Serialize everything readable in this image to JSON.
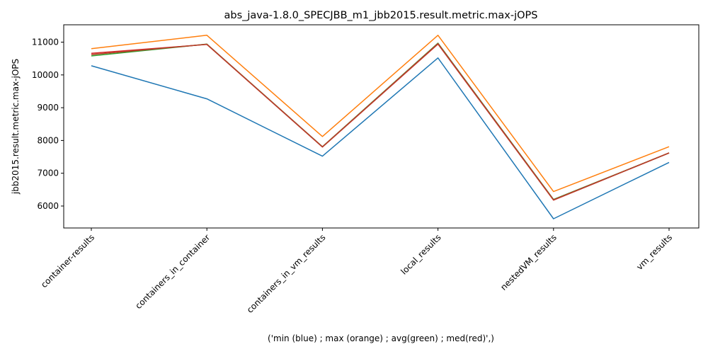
{
  "chart_data": {
    "type": "line",
    "title": "abs_java-1.8.0_SPECJBB_m1_jbb2015.result.metric.max-jOPS",
    "xlabel": "('min (blue) ; max (orange) ; avg(green) ; med(red)',)",
    "ylabel": "jbb2015.result.metric.max-jOPS",
    "categories": [
      "container-results",
      "containers_in_container",
      "containers_in_vm_results",
      "local_results",
      "nestedVM_results",
      "vm_results"
    ],
    "ylim": [
      5330,
      11530
    ],
    "yticks": [
      6000,
      7000,
      8000,
      9000,
      10000,
      11000
    ],
    "grid": false,
    "series": [
      {
        "color": "#1f77b4",
        "values": [
          10280,
          9270,
          7520,
          10520,
          5610,
          7330
        ]
      },
      {
        "color": "#ff7f0e",
        "values": [
          10800,
          11210,
          8120,
          11210,
          6440,
          7810
        ]
      },
      {
        "color": "#2ca02c",
        "values": [
          10580,
          10940,
          7810,
          10970,
          6200,
          7620
        ]
      },
      {
        "color": "#d62728",
        "values": [
          10660,
          10930,
          7800,
          10940,
          6180,
          7620
        ]
      }
    ],
    "overlap_color": "#b5402a"
  }
}
